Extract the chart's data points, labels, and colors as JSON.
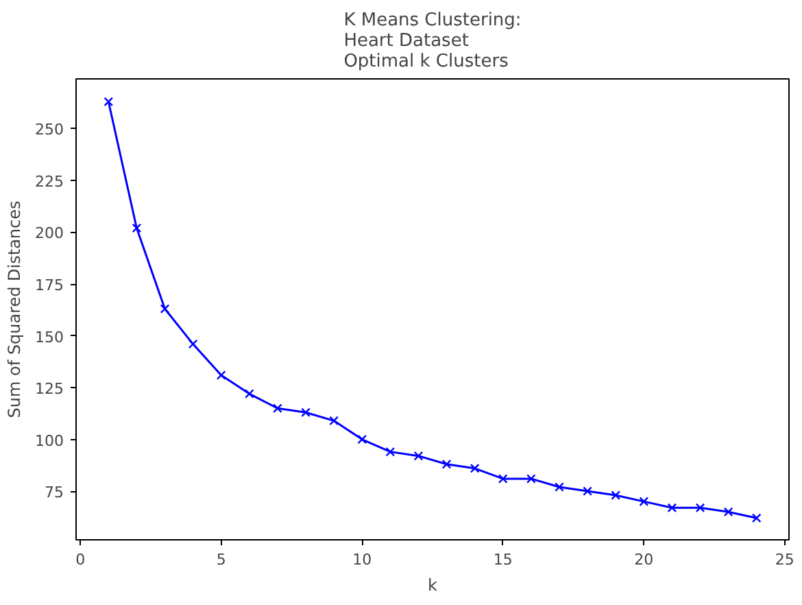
{
  "chart_data": {
    "type": "line",
    "title": "K Means Clustering:\nHeart Dataset\nOptimal k Clusters",
    "xlabel": "k",
    "ylabel": "Sum of Squared Distances",
    "x": [
      1,
      2,
      3,
      4,
      5,
      6,
      7,
      8,
      9,
      10,
      11,
      12,
      13,
      14,
      15,
      16,
      17,
      18,
      19,
      20,
      21,
      22,
      23,
      24
    ],
    "series": [
      {
        "color": "#0000ff",
        "values": [
          263,
          202,
          163,
          146,
          131,
          122,
          115,
          113,
          109,
          100,
          94,
          92,
          88,
          86,
          81,
          81,
          77,
          75,
          73,
          70,
          67,
          67,
          65,
          62
        ]
      }
    ],
    "xlim": [
      -0.15,
      25.15
    ],
    "ylim": [
      51.5,
      274
    ],
    "xticks": [
      0,
      5,
      10,
      15,
      20,
      25
    ],
    "yticks": [
      75,
      100,
      125,
      150,
      175,
      200,
      225,
      250
    ],
    "marker": "cross",
    "line_style": "solid",
    "grid": false
  }
}
